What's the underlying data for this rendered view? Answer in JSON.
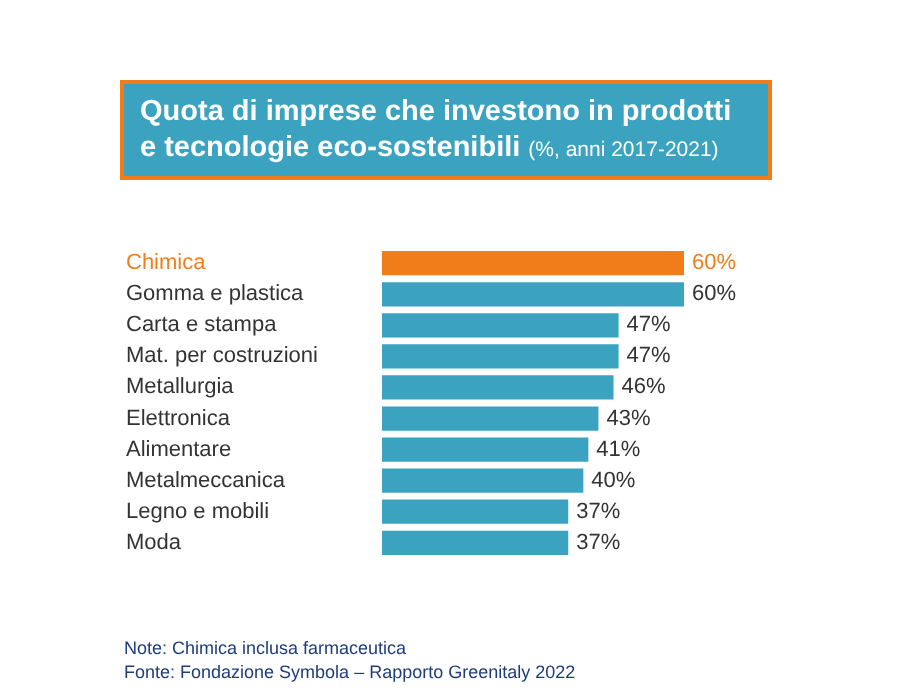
{
  "chart_data": {
    "type": "bar",
    "orientation": "horizontal",
    "title": "Quota di imprese che investono in prodotti e tecnologie eco-sostenibili",
    "subtitle": "(%, anni 2017-2021)",
    "categories": [
      "Chimica",
      "Gomma e plastica",
      "Carta e stampa",
      "Mat. per costruzioni",
      "Metallurgia",
      "Elettronica",
      "Alimentare",
      "Metalmeccanica",
      "Legno e mobili",
      "Moda"
    ],
    "values": [
      60,
      60,
      47,
      47,
      46,
      43,
      41,
      40,
      37,
      37
    ],
    "value_labels": [
      "60%",
      "60%",
      "47%",
      "47%",
      "46%",
      "43%",
      "41%",
      "40%",
      "37%",
      "37%"
    ],
    "colors": [
      "#f07d1a",
      "#3ba3bf",
      "#3ba3bf",
      "#3ba3bf",
      "#3ba3bf",
      "#3ba3bf",
      "#3ba3bf",
      "#3ba3bf",
      "#3ba3bf",
      "#3ba3bf"
    ],
    "annotations": [
      "Note: Chimica inclusa farmaceutica",
      "Fonte: Fondazione Symbola – Rapporto Greenitaly 2022"
    ]
  }
}
